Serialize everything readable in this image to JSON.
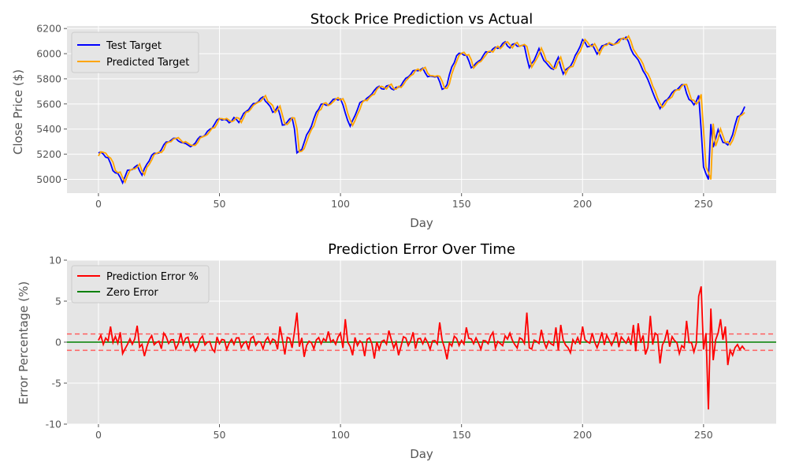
{
  "chart_data": [
    {
      "type": "line",
      "title": "Stock Price Prediction vs Actual",
      "xlabel": "Day",
      "ylabel": "Close Price ($)",
      "xlim": [
        -13,
        280
      ],
      "ylim": [
        4890,
        6220
      ],
      "xticks": [
        0,
        50,
        100,
        150,
        200,
        250
      ],
      "yticks": [
        5000,
        5200,
        5400,
        5600,
        5800,
        6000,
        6200
      ],
      "grid": true,
      "legend": "top-left",
      "series": [
        {
          "name": "Test Target",
          "color": "#0000ff"
        },
        {
          "name": "Predicted Target",
          "color": "#ffa500"
        }
      ],
      "anchors": [
        [
          0,
          5205
        ],
        [
          2,
          5200
        ],
        [
          4,
          5170
        ],
        [
          6,
          5080
        ],
        [
          8,
          5040
        ],
        [
          10,
          4975
        ],
        [
          12,
          5060
        ],
        [
          14,
          5090
        ],
        [
          16,
          5110
        ],
        [
          18,
          5040
        ],
        [
          20,
          5110
        ],
        [
          22,
          5190
        ],
        [
          24,
          5210
        ],
        [
          26,
          5240
        ],
        [
          28,
          5300
        ],
        [
          30,
          5300
        ],
        [
          32,
          5330
        ],
        [
          34,
          5290
        ],
        [
          36,
          5300
        ],
        [
          38,
          5250
        ],
        [
          40,
          5290
        ],
        [
          42,
          5330
        ],
        [
          44,
          5360
        ],
        [
          46,
          5400
        ],
        [
          48,
          5440
        ],
        [
          50,
          5480
        ],
        [
          52,
          5470
        ],
        [
          54,
          5460
        ],
        [
          56,
          5490
        ],
        [
          58,
          5460
        ],
        [
          60,
          5510
        ],
        [
          62,
          5560
        ],
        [
          64,
          5600
        ],
        [
          66,
          5630
        ],
        [
          68,
          5650
        ],
        [
          70,
          5600
        ],
        [
          72,
          5530
        ],
        [
          74,
          5580
        ],
        [
          76,
          5440
        ],
        [
          78,
          5450
        ],
        [
          80,
          5490
        ],
        [
          81,
          5400
        ],
        [
          82,
          5200
        ],
        [
          84,
          5250
        ],
        [
          86,
          5350
        ],
        [
          88,
          5430
        ],
        [
          90,
          5520
        ],
        [
          92,
          5600
        ],
        [
          94,
          5590
        ],
        [
          96,
          5620
        ],
        [
          98,
          5640
        ],
        [
          100,
          5630
        ],
        [
          102,
          5530
        ],
        [
          104,
          5420
        ],
        [
          106,
          5520
        ],
        [
          108,
          5600
        ],
        [
          110,
          5630
        ],
        [
          112,
          5650
        ],
        [
          114,
          5720
        ],
        [
          116,
          5740
        ],
        [
          118,
          5720
        ],
        [
          120,
          5740
        ],
        [
          122,
          5710
        ],
        [
          124,
          5740
        ],
        [
          126,
          5780
        ],
        [
          128,
          5820
        ],
        [
          130,
          5850
        ],
        [
          132,
          5870
        ],
        [
          134,
          5880
        ],
        [
          136,
          5830
        ],
        [
          138,
          5810
        ],
        [
          140,
          5820
        ],
        [
          142,
          5710
        ],
        [
          144,
          5760
        ],
        [
          146,
          5900
        ],
        [
          148,
          5980
        ],
        [
          150,
          6000
        ],
        [
          152,
          5980
        ],
        [
          154,
          5900
        ],
        [
          156,
          5920
        ],
        [
          158,
          5960
        ],
        [
          160,
          6000
        ],
        [
          162,
          6020
        ],
        [
          164,
          6050
        ],
        [
          166,
          6060
        ],
        [
          168,
          6090
        ],
        [
          170,
          6040
        ],
        [
          172,
          6080
        ],
        [
          174,
          6060
        ],
        [
          176,
          6070
        ],
        [
          178,
          5880
        ],
        [
          180,
          5950
        ],
        [
          182,
          6030
        ],
        [
          184,
          5960
        ],
        [
          186,
          5900
        ],
        [
          188,
          5880
        ],
        [
          190,
          5960
        ],
        [
          192,
          5840
        ],
        [
          194,
          5890
        ],
        [
          196,
          5940
        ],
        [
          198,
          6020
        ],
        [
          200,
          6100
        ],
        [
          202,
          6060
        ],
        [
          204,
          6070
        ],
        [
          206,
          6010
        ],
        [
          208,
          6050
        ],
        [
          210,
          6080
        ],
        [
          212,
          6060
        ],
        [
          214,
          6100
        ],
        [
          216,
          6120
        ],
        [
          218,
          6130
        ],
        [
          220,
          6030
        ],
        [
          222,
          5970
        ],
        [
          224,
          5920
        ],
        [
          226,
          5830
        ],
        [
          228,
          5750
        ],
        [
          230,
          5630
        ],
        [
          232,
          5570
        ],
        [
          234,
          5620
        ],
        [
          236,
          5670
        ],
        [
          238,
          5700
        ],
        [
          240,
          5730
        ],
        [
          242,
          5750
        ],
        [
          244,
          5640
        ],
        [
          246,
          5600
        ],
        [
          248,
          5660
        ],
        [
          250,
          5100
        ],
        [
          252,
          4990
        ],
        [
          253,
          5440
        ],
        [
          254,
          5270
        ],
        [
          256,
          5390
        ],
        [
          258,
          5300
        ],
        [
          260,
          5260
        ],
        [
          262,
          5360
        ],
        [
          264,
          5500
        ],
        [
          266,
          5540
        ],
        [
          267,
          5570
        ]
      ]
    },
    {
      "type": "line",
      "title": "Prediction Error Over Time",
      "xlabel": "Day",
      "ylabel": "Error Percentage (%)",
      "xlim": [
        -13,
        280
      ],
      "ylim": [
        -10,
        10
      ],
      "xticks": [
        0,
        50,
        100,
        150,
        200,
        250
      ],
      "yticks": [
        -10,
        -5,
        0,
        5,
        10
      ],
      "grid": true,
      "legend": "top-left",
      "series": [
        {
          "name": "Prediction Error %",
          "color": "#ff0000"
        },
        {
          "name": "Zero Error",
          "color": "#008000"
        }
      ],
      "reference_lines": [
        {
          "y": 0,
          "color": "#008000",
          "style": "solid"
        },
        {
          "y": 1,
          "color": "#ff6060",
          "style": "dashed"
        },
        {
          "y": -1,
          "color": "#ff6060",
          "style": "dashed"
        }
      ],
      "spikes": [
        [
          3,
          0.5
        ],
        [
          5,
          1.9
        ],
        [
          9,
          1.2
        ],
        [
          10,
          -1.4
        ],
        [
          16,
          2.0
        ],
        [
          19,
          -1.7
        ],
        [
          27,
          1.1
        ],
        [
          34,
          1.1
        ],
        [
          40,
          -1.1
        ],
        [
          48,
          -1.2
        ],
        [
          62,
          -0.9
        ],
        [
          75,
          1.9
        ],
        [
          77,
          -1.5
        ],
        [
          81,
          1.3
        ],
        [
          82,
          3.6
        ],
        [
          85,
          -1.8
        ],
        [
          95,
          1.3
        ],
        [
          100,
          1.1
        ],
        [
          102,
          2.8
        ],
        [
          105,
          -1.6
        ],
        [
          110,
          -1.7
        ],
        [
          114,
          -2.0
        ],
        [
          120,
          1.4
        ],
        [
          124,
          -1.6
        ],
        [
          130,
          1.2
        ],
        [
          141,
          2.4
        ],
        [
          144,
          -2.1
        ],
        [
          152,
          1.8
        ],
        [
          163,
          1.2
        ],
        [
          170,
          1.1
        ],
        [
          177,
          3.6
        ],
        [
          178,
          -0.7
        ],
        [
          183,
          1.5
        ],
        [
          189,
          1.8
        ],
        [
          190,
          -1.0
        ],
        [
          191,
          2.1
        ],
        [
          195,
          -1.3
        ],
        [
          200,
          1.9
        ],
        [
          204,
          1.1
        ],
        [
          208,
          1.2
        ],
        [
          214,
          1.2
        ],
        [
          221,
          2.1
        ],
        [
          222,
          -1.1
        ],
        [
          223,
          2.3
        ],
        [
          226,
          -1.5
        ],
        [
          228,
          3.2
        ],
        [
          230,
          1.1
        ],
        [
          232,
          -2.6
        ],
        [
          235,
          1.5
        ],
        [
          240,
          -1.4
        ],
        [
          243,
          2.6
        ],
        [
          246,
          -1.2
        ],
        [
          248,
          5.6
        ],
        [
          249,
          6.8
        ],
        [
          250,
          -0.9
        ],
        [
          251,
          1.1
        ],
        [
          252,
          -8.2
        ],
        [
          253,
          4.1
        ],
        [
          254,
          -2.2
        ],
        [
          256,
          1.1
        ],
        [
          257,
          2.8
        ],
        [
          258,
          0.3
        ],
        [
          259,
          1.9
        ],
        [
          260,
          -2.8
        ],
        [
          261,
          -1.0
        ],
        [
          262,
          -1.6
        ],
        [
          264,
          -0.3
        ],
        [
          265,
          -0.9
        ],
        [
          266,
          -0.5
        ],
        [
          267,
          -0.9
        ]
      ]
    }
  ]
}
